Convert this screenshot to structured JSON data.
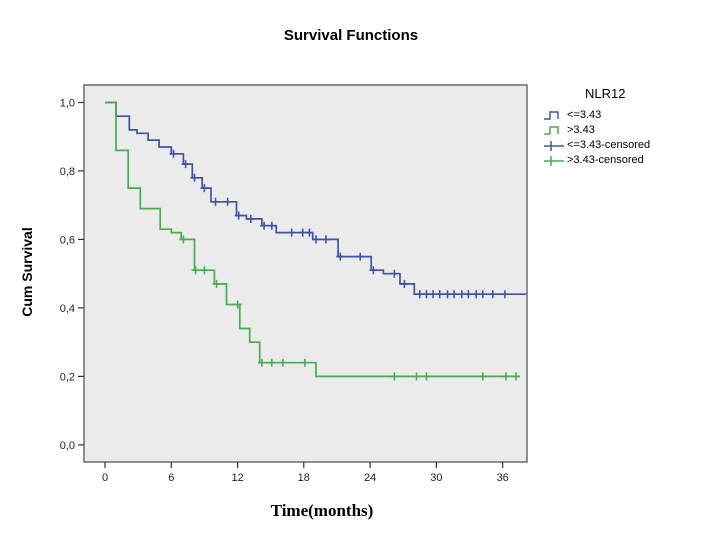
{
  "title": "Survival Functions",
  "colors": {
    "background": "#ffffff",
    "plot_bg": "#ebebeb",
    "frame": "#555555",
    "axis": "#333333",
    "text": "#1f1f1f",
    "blue": "#4053a3",
    "green": "#47ad4f"
  },
  "legend": {
    "title": "NLR12",
    "entries": [
      {
        "label": "<=3.43",
        "type": "step",
        "color": "#4053a3"
      },
      {
        "label": ">3.43",
        "type": "step",
        "color": "#47ad4f"
      },
      {
        "label": "<=3.43-censored",
        "type": "cross",
        "color": "#4053a3"
      },
      {
        "label": ">3.43-censored",
        "type": "cross",
        "color": "#47ad4f"
      }
    ]
  },
  "chart_data": {
    "type": "line",
    "subtype": "kaplan-meier-step",
    "title": "Survival Functions",
    "xlabel": "Time(months)",
    "ylabel": "Cum Survival",
    "grid": false,
    "legend_position": "right",
    "x_ticks": [
      0,
      6,
      12,
      18,
      24,
      30,
      36
    ],
    "y_ticks": [
      {
        "value": 0.0,
        "label": "0,0"
      },
      {
        "value": 0.2,
        "label": "0,2"
      },
      {
        "value": 0.4,
        "label": "0,4"
      },
      {
        "value": 0.6,
        "label": "0,6"
      },
      {
        "value": 0.8,
        "label": "0,8"
      },
      {
        "value": 1.0,
        "label": "1,0"
      }
    ],
    "xlim": [
      -1.9,
      38.2
    ],
    "ylim": [
      -0.05,
      1.051
    ],
    "series": [
      {
        "name": "<=3.43",
        "color": "#4053a3",
        "end_month": 38.1,
        "steps": [
          [
            0,
            1.0
          ],
          [
            1.0,
            0.96
          ],
          [
            2.2,
            0.92
          ],
          [
            2.9,
            0.91
          ],
          [
            3.9,
            0.89
          ],
          [
            4.9,
            0.87
          ],
          [
            6.0,
            0.85
          ],
          [
            7.1,
            0.82
          ],
          [
            7.9,
            0.78
          ],
          [
            8.8,
            0.75
          ],
          [
            9.6,
            0.71
          ],
          [
            11.9,
            0.67
          ],
          [
            12.8,
            0.66
          ],
          [
            14.2,
            0.64
          ],
          [
            15.5,
            0.62
          ],
          [
            18.8,
            0.6
          ],
          [
            21.1,
            0.55
          ],
          [
            24.1,
            0.51
          ],
          [
            25.2,
            0.5
          ],
          [
            26.7,
            0.47
          ],
          [
            28.0,
            0.44
          ]
        ],
        "censored": [
          [
            6.2,
            0.85
          ],
          [
            7.3,
            0.82
          ],
          [
            8.1,
            0.78
          ],
          [
            9.0,
            0.75
          ],
          [
            10.0,
            0.71
          ],
          [
            11.1,
            0.71
          ],
          [
            12.1,
            0.67
          ],
          [
            13.2,
            0.66
          ],
          [
            14.4,
            0.64
          ],
          [
            15.1,
            0.64
          ],
          [
            16.9,
            0.62
          ],
          [
            17.9,
            0.62
          ],
          [
            18.5,
            0.62
          ],
          [
            19.1,
            0.6
          ],
          [
            20.0,
            0.6
          ],
          [
            21.3,
            0.55
          ],
          [
            23.1,
            0.55
          ],
          [
            24.3,
            0.51
          ],
          [
            26.2,
            0.5
          ],
          [
            27.1,
            0.47
          ],
          [
            28.5,
            0.44
          ],
          [
            29.1,
            0.44
          ],
          [
            29.7,
            0.44
          ],
          [
            30.3,
            0.44
          ],
          [
            31.0,
            0.44
          ],
          [
            31.6,
            0.44
          ],
          [
            32.3,
            0.44
          ],
          [
            32.9,
            0.44
          ],
          [
            33.6,
            0.44
          ],
          [
            34.2,
            0.44
          ],
          [
            35.1,
            0.44
          ],
          [
            36.2,
            0.44
          ]
        ]
      },
      {
        "name": ">3.43",
        "color": "#47ad4f",
        "end_month": 37.5,
        "steps": [
          [
            0,
            1.0
          ],
          [
            1.0,
            0.86
          ],
          [
            2.1,
            0.75
          ],
          [
            3.2,
            0.69
          ],
          [
            5.0,
            0.63
          ],
          [
            6.0,
            0.62
          ],
          [
            6.9,
            0.6
          ],
          [
            8.1,
            0.51
          ],
          [
            9.9,
            0.47
          ],
          [
            11.0,
            0.41
          ],
          [
            12.2,
            0.34
          ],
          [
            13.1,
            0.3
          ],
          [
            14.0,
            0.24
          ],
          [
            19.1,
            0.2
          ]
        ],
        "censored": [
          [
            7.1,
            0.6
          ],
          [
            8.2,
            0.51
          ],
          [
            9.0,
            0.51
          ],
          [
            10.1,
            0.47
          ],
          [
            12.0,
            0.41
          ],
          [
            14.2,
            0.24
          ],
          [
            15.1,
            0.24
          ],
          [
            16.1,
            0.24
          ],
          [
            18.1,
            0.24
          ],
          [
            26.2,
            0.2
          ],
          [
            28.2,
            0.2
          ],
          [
            29.1,
            0.2
          ],
          [
            34.2,
            0.2
          ],
          [
            36.3,
            0.2
          ],
          [
            37.2,
            0.2
          ]
        ]
      }
    ]
  }
}
